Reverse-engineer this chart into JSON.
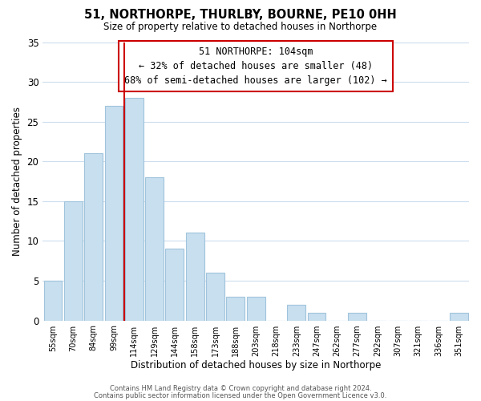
{
  "title": "51, NORTHORPE, THURLBY, BOURNE, PE10 0HH",
  "subtitle": "Size of property relative to detached houses in Northorpe",
  "xlabel": "Distribution of detached houses by size in Northorpe",
  "ylabel": "Number of detached properties",
  "bar_labels": [
    "55sqm",
    "70sqm",
    "84sqm",
    "99sqm",
    "114sqm",
    "129sqm",
    "144sqm",
    "158sqm",
    "173sqm",
    "188sqm",
    "203sqm",
    "218sqm",
    "233sqm",
    "247sqm",
    "262sqm",
    "277sqm",
    "292sqm",
    "307sqm",
    "321sqm",
    "336sqm",
    "351sqm"
  ],
  "bar_values": [
    5,
    15,
    21,
    27,
    28,
    18,
    9,
    11,
    6,
    3,
    3,
    0,
    2,
    1,
    0,
    1,
    0,
    0,
    0,
    0,
    1
  ],
  "bar_color": "#c8dff0",
  "bar_edge_color": "#a0c4dc",
  "vline_x": 3.5,
  "vline_color": "#cc0000",
  "ylim": [
    0,
    35
  ],
  "yticks": [
    0,
    5,
    10,
    15,
    20,
    25,
    30,
    35
  ],
  "annotation_title": "51 NORTHORPE: 104sqm",
  "annotation_line1": "← 32% of detached houses are smaller (48)",
  "annotation_line2": "68% of semi-detached houses are larger (102) →",
  "annotation_box_color": "#ffffff",
  "annotation_box_edge": "#cc0000",
  "footer_line1": "Contains HM Land Registry data © Crown copyright and database right 2024.",
  "footer_line2": "Contains public sector information licensed under the Open Government Licence v3.0.",
  "background_color": "#ffffff",
  "grid_color": "#ccdded"
}
